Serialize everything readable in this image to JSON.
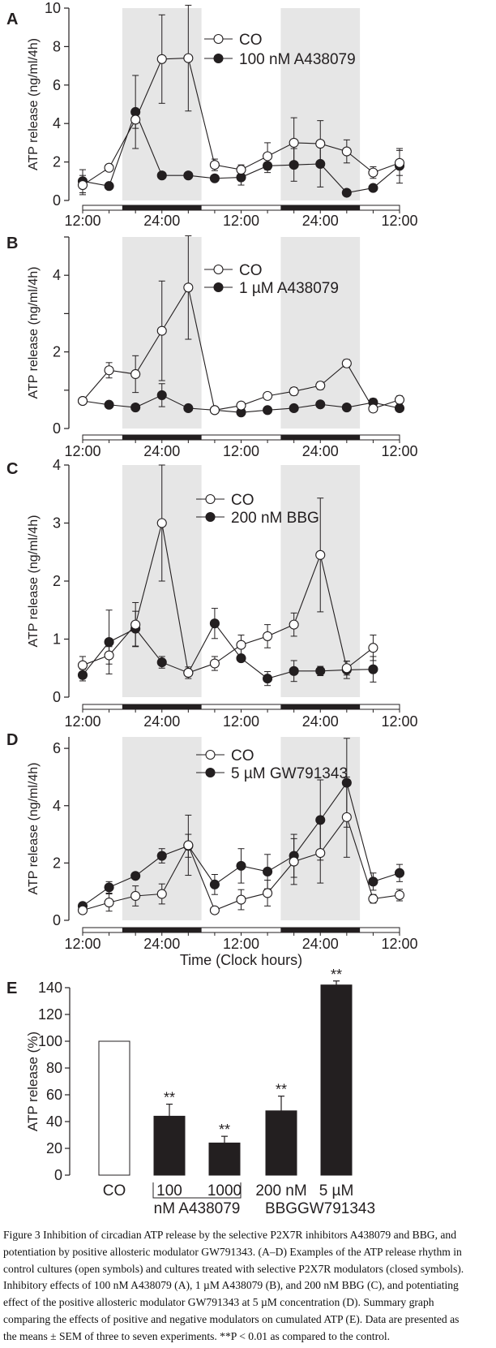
{
  "colors": {
    "shade": "#e6e6e6",
    "ink": "#231f20",
    "open_fill": "#ffffff"
  },
  "chart_data": [
    {
      "panel": "A",
      "type": "line",
      "ylabel": "ATP release (ng/ml/4h)",
      "ylim": [
        0,
        10
      ],
      "yticks": [
        0,
        2,
        4,
        6,
        8,
        10
      ],
      "yticks_minor": [],
      "x_hours": [
        12,
        16,
        20,
        24,
        28,
        32,
        36,
        40,
        44,
        48,
        52,
        56,
        60
      ],
      "xticks": [
        {
          "h": 12,
          "label": "12:00"
        },
        {
          "h": 24,
          "label": "24:00"
        },
        {
          "h": 36,
          "label": "12:00"
        },
        {
          "h": 48,
          "label": "24:00"
        },
        {
          "h": 60,
          "label": "12:00"
        }
      ],
      "dark_phases": [
        [
          18,
          30
        ],
        [
          42,
          54
        ]
      ],
      "series": [
        {
          "name": "CO",
          "marker": "open",
          "values": [
            0.8,
            1.7,
            4.2,
            7.35,
            7.4,
            1.85,
            1.6,
            2.3,
            3.0,
            2.95,
            2.55,
            1.45,
            1.95
          ],
          "errors": [
            0.5,
            0.1,
            0.45,
            2.3,
            2.75,
            0.3,
            0.25,
            0.7,
            1.3,
            1.2,
            0.6,
            0.3,
            0.65
          ]
        },
        {
          "name": "100 nM A438079",
          "marker": "filled",
          "values": [
            1.0,
            0.75,
            4.6,
            1.3,
            1.3,
            1.15,
            1.2,
            1.8,
            1.85,
            1.9,
            0.4,
            0.65,
            1.8
          ],
          "errors": [
            0.6,
            0.1,
            1.9,
            0.1,
            0.1,
            0.1,
            0.4,
            0.35,
            0.85,
            1.2,
            0.1,
            0.1,
            0.9
          ]
        }
      ]
    },
    {
      "panel": "B",
      "type": "line",
      "ylabel": "ATP release (ng/ml/4h)",
      "ylim": [
        0,
        5
      ],
      "yticks": [
        0,
        2,
        4
      ],
      "yticks_minor": [
        1,
        3,
        5
      ],
      "x_hours": [
        12,
        16,
        20,
        24,
        28,
        32,
        36,
        40,
        44,
        48,
        52,
        56,
        60
      ],
      "xticks": [
        {
          "h": 12,
          "label": "12:00"
        },
        {
          "h": 24,
          "label": "24:00"
        },
        {
          "h": 36,
          "label": "12:00"
        },
        {
          "h": 48,
          "label": "24:00"
        },
        {
          "h": 60,
          "label": "12:00"
        }
      ],
      "dark_phases": [
        [
          18,
          30
        ],
        [
          42,
          54
        ]
      ],
      "series": [
        {
          "name": "CO",
          "marker": "open",
          "values": [
            0.72,
            1.52,
            1.42,
            2.55,
            3.68,
            0.48,
            0.6,
            0.85,
            0.97,
            1.12,
            1.7,
            0.52,
            0.75
          ],
          "errors": [
            0.05,
            0.2,
            0.48,
            1.3,
            1.35,
            0.03,
            0.05,
            0.05,
            0.1,
            0.1,
            0.1,
            0.05,
            0.1
          ]
        },
        {
          "name": "1 µM A438079",
          "marker": "filled",
          "values": [
            0.72,
            0.62,
            0.55,
            0.87,
            0.53,
            0.48,
            0.42,
            0.48,
            0.53,
            0.63,
            0.55,
            0.68,
            0.53
          ],
          "errors": [
            0.05,
            0.03,
            0.03,
            0.3,
            0.03,
            0.03,
            0.03,
            0.03,
            0.03,
            0.05,
            0.03,
            0.1,
            0.05
          ]
        }
      ]
    },
    {
      "panel": "C",
      "type": "line",
      "ylabel": "ATP release (ng/ml/4h)",
      "ylim": [
        0,
        4
      ],
      "yticks": [
        0,
        1,
        2,
        3,
        4
      ],
      "yticks_minor": [],
      "x_hours": [
        12,
        16,
        20,
        24,
        28,
        32,
        36,
        40,
        44,
        48,
        52,
        56
      ],
      "xticks": [
        {
          "h": 12,
          "label": "12:00"
        },
        {
          "h": 24,
          "label": "24:00"
        },
        {
          "h": 36,
          "label": "12:00"
        },
        {
          "h": 48,
          "label": "24:00"
        },
        {
          "h": 60,
          "label": "12:00"
        }
      ],
      "dark_phases": [
        [
          18,
          30
        ],
        [
          42,
          54
        ]
      ],
      "series": [
        {
          "name": "CO",
          "marker": "open",
          "values": [
            0.55,
            0.72,
            1.25,
            3.0,
            0.42,
            0.58,
            0.9,
            1.05,
            1.25,
            2.45,
            0.5,
            0.85
          ],
          "errors": [
            0.15,
            0.15,
            0.38,
            1.0,
            0.1,
            0.12,
            0.17,
            0.2,
            0.2,
            0.98,
            0.12,
            0.22
          ]
        },
        {
          "name": "200 nM BBG",
          "marker": "filled",
          "values": [
            0.38,
            0.95,
            1.18,
            0.6,
            0.42,
            1.27,
            0.67,
            0.32,
            0.45,
            0.45,
            0.47,
            0.48
          ],
          "errors": [
            0.1,
            0.55,
            0.3,
            0.1,
            0.05,
            0.26,
            0.05,
            0.12,
            0.18,
            0.08,
            0.15,
            0.22
          ]
        }
      ]
    },
    {
      "panel": "D",
      "type": "line",
      "ylabel": "ATP release (ng/ml/4h)",
      "xlabel": "Time (Clock hours)",
      "ylim": [
        0,
        6.4
      ],
      "yticks": [
        0,
        2,
        4,
        6
      ],
      "yticks_minor": [],
      "x_hours": [
        12,
        16,
        20,
        24,
        28,
        32,
        36,
        40,
        44,
        48,
        52,
        56,
        60
      ],
      "xticks": [
        {
          "h": 12,
          "label": "12:00"
        },
        {
          "h": 24,
          "label": "24:00"
        },
        {
          "h": 36,
          "label": "12:00"
        },
        {
          "h": 48,
          "label": "24:00"
        },
        {
          "h": 60,
          "label": "12:00"
        }
      ],
      "dark_phases": [
        [
          18,
          30
        ],
        [
          42,
          54
        ]
      ],
      "series": [
        {
          "name": "CO",
          "marker": "open",
          "values": [
            0.35,
            0.62,
            0.85,
            0.92,
            2.62,
            0.35,
            0.72,
            0.95,
            2.05,
            2.35,
            3.6,
            0.75,
            0.88
          ],
          "errors": [
            0.1,
            0.3,
            0.35,
            0.35,
            1.05,
            0.1,
            0.35,
            0.45,
            0.8,
            1.05,
            1.4,
            0.15,
            0.2
          ]
        },
        {
          "name": "5 µM GW791343",
          "marker": "filled",
          "values": [
            0.5,
            1.15,
            1.55,
            2.25,
            2.6,
            1.25,
            1.9,
            1.7,
            2.25,
            3.5,
            4.8,
            1.35,
            1.65
          ],
          "errors": [
            0.1,
            0.2,
            0.05,
            0.25,
            0.4,
            0.35,
            0.6,
            0.6,
            0.75,
            1.4,
            1.55,
            0.3,
            0.3
          ]
        }
      ]
    },
    {
      "panel": "E",
      "type": "bar",
      "ylabel": "ATP release (%)",
      "ylim": [
        0,
        140
      ],
      "yticks": [
        0,
        20,
        40,
        60,
        80,
        100,
        120,
        140
      ],
      "bars": [
        {
          "label_lines": [
            "CO"
          ],
          "value": 100,
          "error": 0,
          "style": "open",
          "significance": ""
        },
        {
          "label_lines": [
            "100"
          ],
          "value": 44,
          "error": 9,
          "style": "filled",
          "significance": "**"
        },
        {
          "label_lines": [
            "1000"
          ],
          "value": 24,
          "error": 5,
          "style": "filled",
          "significance": "**"
        },
        {
          "label_lines": [
            "200 nM",
            "BBG"
          ],
          "value": 48,
          "error": 11,
          "style": "filled",
          "significance": "**"
        },
        {
          "label_lines": [
            "5 µM",
            "GW791343"
          ],
          "value": 142,
          "error": 3,
          "style": "filled",
          "significance": "**"
        }
      ],
      "group_label": "nM A438079"
    }
  ],
  "caption": {
    "lines": [
      "Figure 3 Inhibition of circadian ATP release by the selective P2X7R inhibitors A438079 and BBG, and",
      "potentiation by positive allosteric modulator GW791343. (A–D) Examples of the ATP release rhythm in",
      "control cultures (open symbols) and cultures treated with selective P2X7R modulators (closed symbols).",
      "Inhibitory effects of 100 nM A438079 (A), 1 µM A438079 (B), and 200 nM BBG (C), and potentiating",
      "effect of the positive allosteric modulator GW791343 at 5 µM concentration (D). Summary graph",
      "comparing the effects of positive and negative modulators on cumulated ATP (E). Data are presented as",
      "the means ± SEM of three to seven experiments. **P < 0.01 as compared to the control."
    ]
  }
}
